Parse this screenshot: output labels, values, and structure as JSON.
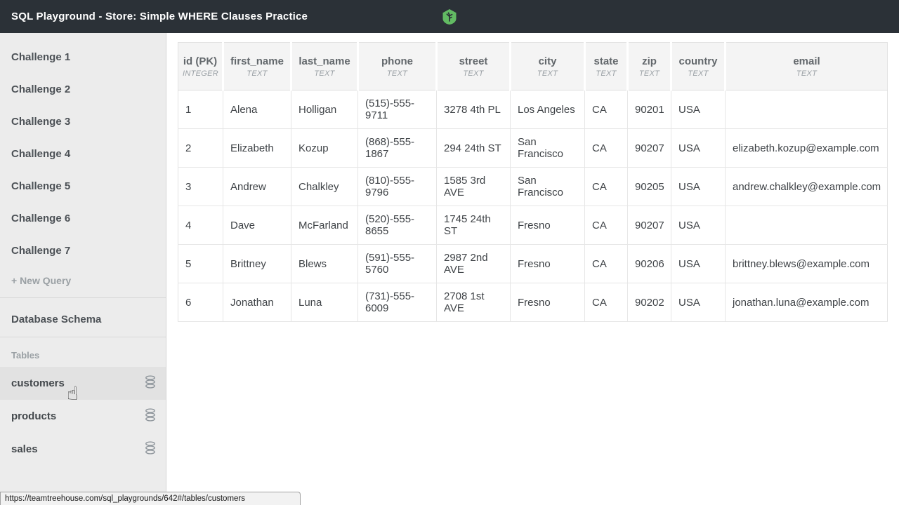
{
  "titlebar": {
    "title": "SQL Playground - Store: Simple WHERE Clauses Practice",
    "logo_icon": "treehouse-logo"
  },
  "sidebar": {
    "challenges": [
      "Challenge 1",
      "Challenge 2",
      "Challenge 3",
      "Challenge 4",
      "Challenge 5",
      "Challenge 6",
      "Challenge 7"
    ],
    "new_query_label": "+ New Query",
    "schema_heading": "Database Schema",
    "tables_heading": "Tables",
    "tables": [
      {
        "label": "customers",
        "icon": "database-icon",
        "active": true
      },
      {
        "label": "products",
        "icon": "database-icon",
        "active": false
      },
      {
        "label": "sales",
        "icon": "database-icon",
        "active": false
      }
    ]
  },
  "table": {
    "columns": [
      {
        "name": "id (PK)",
        "type": "INTEGER"
      },
      {
        "name": "first_name",
        "type": "TEXT"
      },
      {
        "name": "last_name",
        "type": "TEXT"
      },
      {
        "name": "phone",
        "type": "TEXT"
      },
      {
        "name": "street",
        "type": "TEXT"
      },
      {
        "name": "city",
        "type": "TEXT"
      },
      {
        "name": "state",
        "type": "TEXT"
      },
      {
        "name": "zip",
        "type": "TEXT"
      },
      {
        "name": "country",
        "type": "TEXT"
      },
      {
        "name": "email",
        "type": "TEXT"
      }
    ],
    "rows": [
      [
        "1",
        "Alena",
        "Holligan",
        "(515)-555-9711",
        "3278 4th PL",
        "Los Angeles",
        "CA",
        "90201",
        "USA",
        ""
      ],
      [
        "2",
        "Elizabeth",
        "Kozup",
        "(868)-555-1867",
        "294 24th ST",
        "San Francisco",
        "CA",
        "90207",
        "USA",
        "elizabeth.kozup@example.com"
      ],
      [
        "3",
        "Andrew",
        "Chalkley",
        "(810)-555-9796",
        "1585 3rd AVE",
        "San Francisco",
        "CA",
        "90205",
        "USA",
        "andrew.chalkley@example.com"
      ],
      [
        "4",
        "Dave",
        "McFarland",
        "(520)-555-8655",
        "1745 24th ST",
        "Fresno",
        "CA",
        "90207",
        "USA",
        ""
      ],
      [
        "5",
        "Brittney",
        "Blews",
        "(591)-555-5760",
        "2987 2nd AVE",
        "Fresno",
        "CA",
        "90206",
        "USA",
        "brittney.blews@example.com"
      ],
      [
        "6",
        "Jonathan",
        "Luna",
        "(731)-555-6009",
        "2708 1st AVE",
        "Fresno",
        "CA",
        "90202",
        "USA",
        "jonathan.luna@example.com"
      ]
    ]
  },
  "status_bar": {
    "url": "https://teamtreehouse.com/sql_playgrounds/642#/tables/customers"
  },
  "icons": {
    "hand_cursor": "☝"
  },
  "colors": {
    "titlebar_bg": "#2b3137",
    "logo_green": "#62bb63",
    "sidebar_bg": "#ececec",
    "sidebar_active_bg": "#e2e2e2",
    "header_cell_bg": "#f4f4f4",
    "grid_border": "#e2e2e2",
    "text_dark": "#43484c",
    "text_muted": "#9aa0a4"
  }
}
